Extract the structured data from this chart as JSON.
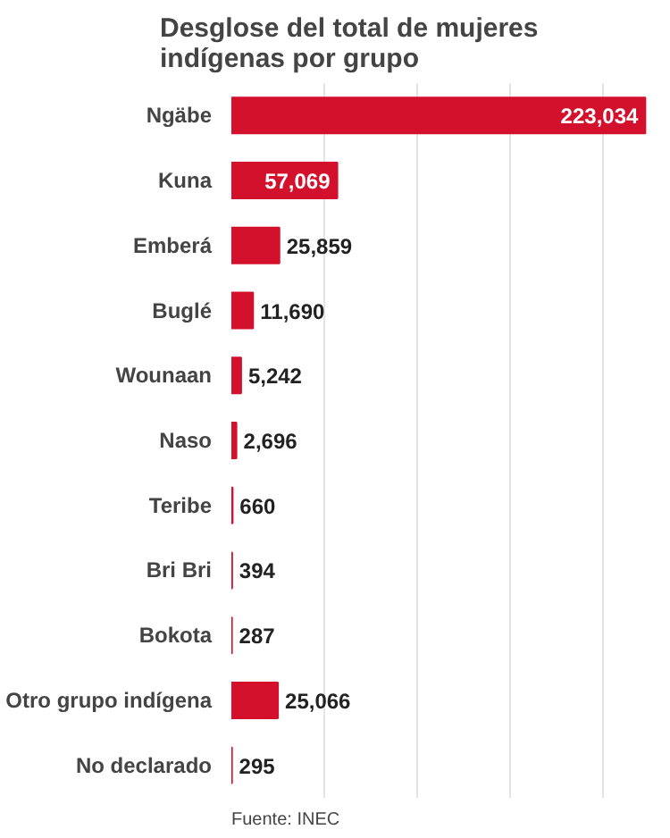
{
  "chart_data": {
    "type": "bar",
    "orientation": "horizontal",
    "title": "Desglose del total de mujeres indígenas por grupo",
    "categories": [
      "Ngäbe",
      "Kuna",
      "Emberá",
      "Buglé",
      "Wounaan",
      "Naso",
      "Teribe",
      "Bri Bri",
      "Bokota",
      "Otro grupo indígena",
      "No declarado"
    ],
    "values": [
      223034,
      57069,
      25859,
      11690,
      5242,
      2696,
      660,
      394,
      287,
      25066,
      295
    ],
    "value_labels": [
      "223,034",
      "57,069",
      "25,859",
      "11,690",
      "5,242",
      "2,696",
      "660",
      "394",
      "287",
      "25,066",
      "295"
    ],
    "color": "#d3112c",
    "grid": "x",
    "tick_labels": "y",
    "annotations": [
      "Fuente: INEC"
    ]
  }
}
